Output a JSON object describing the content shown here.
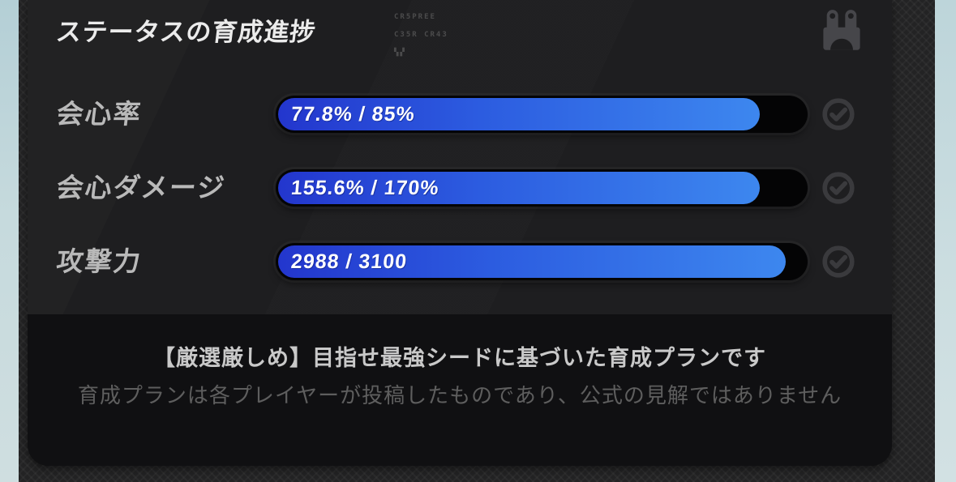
{
  "header": {
    "title": "ステータスの育成進捗",
    "deco_line1": "CR5PREE",
    "deco_line2": "C35R CR43",
    "deco_line3": "▚▞",
    "mascot_icon": "bangboo-icon"
  },
  "stats": [
    {
      "label": "会心率",
      "value": 77.8,
      "target": 85,
      "value_text": "77.8% / 85%",
      "status_icon": "check-circle-icon"
    },
    {
      "label": "会心ダメージ",
      "value": 155.6,
      "target": 170,
      "value_text": "155.6% / 170%",
      "status_icon": "check-circle-icon"
    },
    {
      "label": "攻撃力",
      "value": 2988,
      "target": 3100,
      "value_text": "2988 / 3100",
      "status_icon": "check-circle-icon"
    }
  ],
  "footer": {
    "line1": "【厳選厳しめ】目指せ最強シードに基づいた育成プランです",
    "line2": "育成プランは各プレイヤーが投稿したものであり、公式の見解ではありません"
  },
  "colors": {
    "bar_fill_start": "#2336cd",
    "bar_fill_end": "#3d87ef",
    "bar_track": "#040405",
    "card_top_bg": "#1e1e20",
    "card_bottom_bg": "#101012",
    "side_strip": "#bfd6da",
    "icon_gray": "#46464a"
  }
}
